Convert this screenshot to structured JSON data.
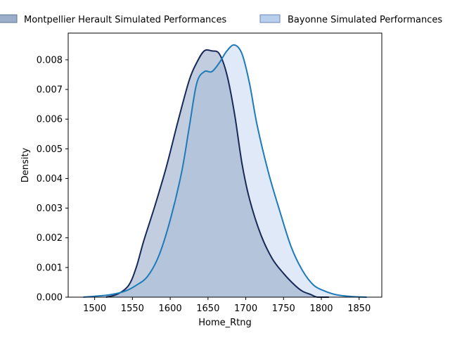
{
  "chart_data": {
    "type": "area",
    "title": "",
    "xlabel": "Home_Rtng",
    "ylabel": "Density",
    "xlim": [
      1465,
      1880
    ],
    "ylim": [
      0,
      0.0089
    ],
    "xticks": [
      1500,
      1550,
      1600,
      1650,
      1700,
      1750,
      1800,
      1850
    ],
    "xtick_labels": [
      "1500",
      "1550",
      "1600",
      "1650",
      "1700",
      "1750",
      "1800",
      "1850"
    ],
    "yticks": [
      0,
      0.001,
      0.002,
      0.003,
      0.004,
      0.005,
      0.006,
      0.007,
      0.008
    ],
    "ytick_labels": [
      "0.000",
      "0.001",
      "0.002",
      "0.003",
      "0.004",
      "0.005",
      "0.006",
      "0.007",
      "0.008"
    ],
    "grid": false,
    "legend_position": "top",
    "series": [
      {
        "name": "Montpellier Herault Simulated Performances",
        "color": "#1f77b4",
        "fill": "#8fa5c4",
        "line": "#17295a",
        "x": [
          1515,
          1530,
          1545,
          1555,
          1565,
          1580,
          1595,
          1610,
          1625,
          1635,
          1645,
          1655,
          1665,
          1675,
          1685,
          1695,
          1705,
          1720,
          1735,
          1750,
          1765,
          1775,
          1785,
          1795,
          1810
        ],
        "y": [
          0.0,
          0.0001,
          0.0004,
          0.001,
          0.0019,
          0.0031,
          0.0044,
          0.0059,
          0.0073,
          0.0079,
          0.0083,
          0.0083,
          0.0082,
          0.0075,
          0.0062,
          0.0045,
          0.0033,
          0.0021,
          0.0013,
          0.0008,
          0.0004,
          0.0002,
          0.0001,
          0.0,
          0.0
        ]
      },
      {
        "name": "Bayonne Simulated Performances",
        "color": "#b8cfee",
        "fill": "#b8cfee",
        "line": "#1f7bb8",
        "x": [
          1485,
          1500,
          1520,
          1540,
          1555,
          1570,
          1585,
          1600,
          1615,
          1625,
          1635,
          1645,
          1655,
          1665,
          1675,
          1685,
          1695,
          1705,
          1715,
          1730,
          1745,
          1760,
          1775,
          1790,
          1805,
          1820,
          1840,
          1860
        ],
        "y": [
          0.0,
          3e-05,
          8e-05,
          0.0002,
          0.0004,
          0.0007,
          0.0014,
          0.0026,
          0.0042,
          0.0057,
          0.0072,
          0.0076,
          0.0076,
          0.0079,
          0.0083,
          0.0085,
          0.0082,
          0.0072,
          0.0058,
          0.0042,
          0.0029,
          0.0017,
          0.0009,
          0.0004,
          0.0002,
          8e-05,
          2e-05,
          0.0
        ]
      }
    ]
  }
}
